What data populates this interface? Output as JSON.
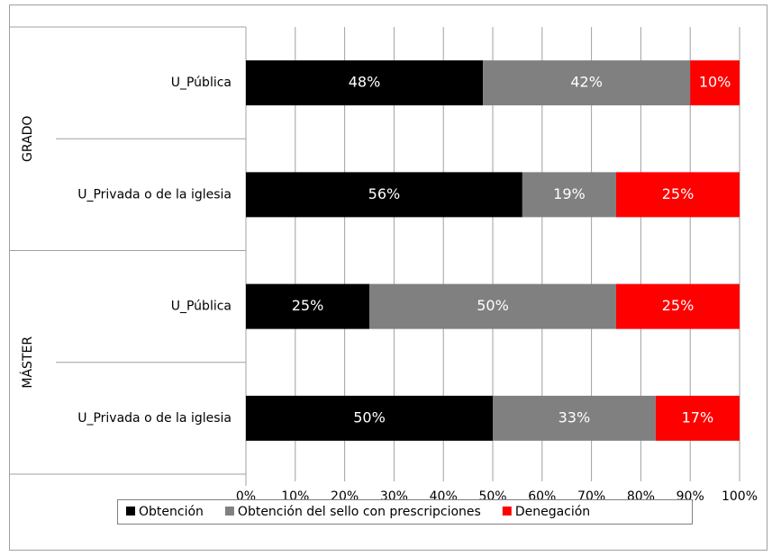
{
  "chart_data": {
    "type": "stacked_bar_horizontal",
    "groups": [
      "GRADO",
      "MÁSTER"
    ],
    "categories": [
      "U_Pública",
      "U_Privada o de la iglesia",
      "U_Pública",
      "U_Privada o de la iglesia"
    ],
    "series": [
      {
        "name": "Obtención",
        "color": "#000000",
        "values": [
          48,
          56,
          25,
          50
        ],
        "value_labels": [
          "48%",
          "56%",
          "25%",
          "50%"
        ]
      },
      {
        "name": "Obtención del sello con prescripciones",
        "color": "#808080",
        "values": [
          42,
          19,
          50,
          33
        ],
        "value_labels": [
          "42%",
          "19%",
          "50%",
          "33%"
        ]
      },
      {
        "name": "Denegación",
        "color": "#ff0000",
        "values": [
          10,
          25,
          25,
          17
        ],
        "value_labels": [
          "10%",
          "25%",
          "25%",
          "17%"
        ]
      }
    ],
    "xlim": [
      0,
      100
    ],
    "xticks": [
      {
        "value": 0,
        "label": "0%"
      },
      {
        "value": 10,
        "label": "10%"
      },
      {
        "value": 20,
        "label": "20%"
      },
      {
        "value": 30,
        "label": "30%"
      },
      {
        "value": 40,
        "label": "40%"
      },
      {
        "value": 50,
        "label": "50%"
      },
      {
        "value": 60,
        "label": "60%"
      },
      {
        "value": 70,
        "label": "70%"
      },
      {
        "value": 80,
        "label": "80%"
      },
      {
        "value": 90,
        "label": "90%"
      },
      {
        "value": 100,
        "label": "100%"
      }
    ],
    "grid": true,
    "legend": "bottom"
  }
}
